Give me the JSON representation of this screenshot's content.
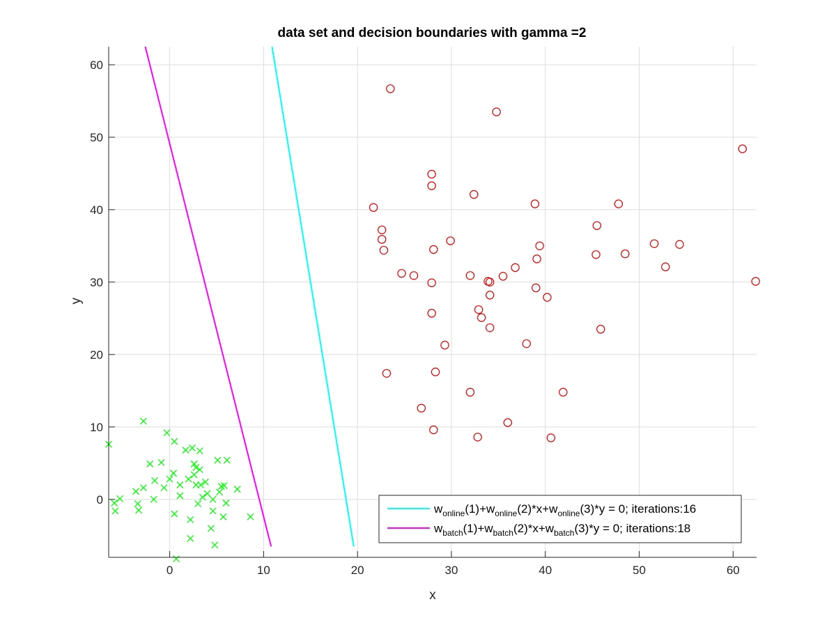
{
  "chart_data": {
    "type": "scatter",
    "title": "data set and decision boundaries with gamma =2",
    "xlabel": "x",
    "ylabel": "y",
    "xlim": [
      -6.5,
      62.5
    ],
    "ylim": [
      -8,
      62.5
    ],
    "xticks": [
      0,
      10,
      20,
      30,
      40,
      50,
      60
    ],
    "yticks": [
      0,
      10,
      20,
      30,
      40,
      50,
      60
    ],
    "xtick_labels": [
      "0",
      "10",
      "20",
      "30",
      "40",
      "50",
      "60"
    ],
    "ytick_labels": [
      "0",
      "10",
      "20",
      "30",
      "40",
      "50",
      "60"
    ],
    "grid": true,
    "legend_position": "bottom-right",
    "scatter_series": [
      {
        "marker": "x",
        "color": "#00ff00",
        "points": [
          [
            -6.5,
            7.6
          ],
          [
            -5.9,
            -0.5
          ],
          [
            -5.8,
            -1.6
          ],
          [
            -5.3,
            0.1
          ],
          [
            -3.4,
            -0.6
          ],
          [
            -3.3,
            -1.5
          ],
          [
            -3.6,
            1.1
          ],
          [
            -2.8,
            10.8
          ],
          [
            -2.8,
            1.6
          ],
          [
            -2.1,
            4.9
          ],
          [
            -1.6,
            2.6
          ],
          [
            -1.7,
            0.0
          ],
          [
            -0.9,
            5.1
          ],
          [
            -0.6,
            1.6
          ],
          [
            -0.3,
            9.2
          ],
          [
            0.0,
            2.8
          ],
          [
            0.4,
            3.6
          ],
          [
            0.5,
            8.0
          ],
          [
            0.5,
            -2.0
          ],
          [
            0.7,
            -8.2
          ],
          [
            1.1,
            2.0
          ],
          [
            1.1,
            0.5
          ],
          [
            1.7,
            6.8
          ],
          [
            2.0,
            2.8
          ],
          [
            2.2,
            -2.8
          ],
          [
            2.2,
            -5.4
          ],
          [
            2.4,
            7.1
          ],
          [
            2.6,
            4.9
          ],
          [
            2.6,
            3.4
          ],
          [
            2.8,
            2.0
          ],
          [
            2.8,
            4.4
          ],
          [
            3.0,
            -0.6
          ],
          [
            3.2,
            6.7
          ],
          [
            3.2,
            4.1
          ],
          [
            3.3,
            2.0
          ],
          [
            3.5,
            0.3
          ],
          [
            3.8,
            2.4
          ],
          [
            4.0,
            0.8
          ],
          [
            4.4,
            -4.0
          ],
          [
            4.6,
            -1.6
          ],
          [
            4.6,
            0.0
          ],
          [
            4.8,
            -6.3
          ],
          [
            5.1,
            5.4
          ],
          [
            5.3,
            1.0
          ],
          [
            5.5,
            1.8
          ],
          [
            5.7,
            -2.4
          ],
          [
            5.8,
            1.9
          ],
          [
            6.0,
            -0.5
          ],
          [
            6.1,
            5.4
          ],
          [
            7.2,
            1.4
          ],
          [
            8.6,
            -2.4
          ]
        ]
      },
      {
        "marker": "o",
        "color": "#e00000",
        "points": [
          [
            21.7,
            40.3
          ],
          [
            22.6,
            37.2
          ],
          [
            22.6,
            35.9
          ],
          [
            22.8,
            34.4
          ],
          [
            23.1,
            17.4
          ],
          [
            23.5,
            56.7
          ],
          [
            24.7,
            31.2
          ],
          [
            26.0,
            30.9
          ],
          [
            26.8,
            12.6
          ],
          [
            27.9,
            44.9
          ],
          [
            27.9,
            43.3
          ],
          [
            27.9,
            29.9
          ],
          [
            27.9,
            25.7
          ],
          [
            28.1,
            9.6
          ],
          [
            28.1,
            34.5
          ],
          [
            28.3,
            17.6
          ],
          [
            29.3,
            21.3
          ],
          [
            29.9,
            35.7
          ],
          [
            32.0,
            30.9
          ],
          [
            32.0,
            14.8
          ],
          [
            32.4,
            42.1
          ],
          [
            32.8,
            8.6
          ],
          [
            32.9,
            26.2
          ],
          [
            33.2,
            25.1
          ],
          [
            33.9,
            30.1
          ],
          [
            34.1,
            30.0
          ],
          [
            34.1,
            28.2
          ],
          [
            34.1,
            23.7
          ],
          [
            34.8,
            53.5
          ],
          [
            35.5,
            30.8
          ],
          [
            36.0,
            10.6
          ],
          [
            36.8,
            32.0
          ],
          [
            38.0,
            21.5
          ],
          [
            38.9,
            40.8
          ],
          [
            39.0,
            29.2
          ],
          [
            39.1,
            33.2
          ],
          [
            39.4,
            35.0
          ],
          [
            40.2,
            27.9
          ],
          [
            40.6,
            8.5
          ],
          [
            41.9,
            14.8
          ],
          [
            45.4,
            33.8
          ],
          [
            45.5,
            37.8
          ],
          [
            45.9,
            23.5
          ],
          [
            47.8,
            40.8
          ],
          [
            48.5,
            33.9
          ],
          [
            51.6,
            35.3
          ],
          [
            52.8,
            32.1
          ],
          [
            54.3,
            35.2
          ],
          [
            61.0,
            48.4
          ],
          [
            62.4,
            30.1
          ]
        ]
      }
    ],
    "line_series": [
      {
        "color": "#00ffff",
        "points": [
          [
            10.9,
            62.5
          ],
          [
            19.6,
            -6.5
          ]
        ],
        "legend_parts": [
          "w",
          "online",
          "(1)+w",
          "online",
          "(2)*x+w",
          "online",
          "(3)*y = 0; iterations:16"
        ]
      },
      {
        "color": "#ff00ff",
        "points": [
          [
            -2.6,
            62.5
          ],
          [
            10.8,
            -6.5
          ]
        ],
        "legend_parts": [
          "w",
          "batch",
          "(1)+w",
          "batch",
          "(2)*x+w",
          "batch",
          "(3)*y = 0; iterations:18"
        ]
      }
    ]
  }
}
